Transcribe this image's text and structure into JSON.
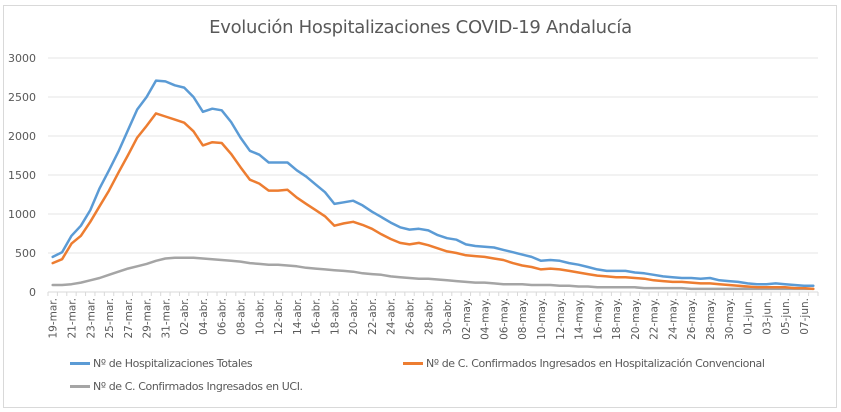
{
  "chart_data": {
    "type": "line",
    "title": "Evolución Hospitalizaciones COVID-19 Andalucía",
    "xlabel": "",
    "ylabel": "",
    "ylim": [
      0,
      3000
    ],
    "yticks": [
      0,
      500,
      1000,
      1500,
      2000,
      2500,
      3000
    ],
    "grid": true,
    "legend_position": "bottom",
    "x": [
      "19-mar.",
      "20-mar.",
      "21-mar.",
      "22-mar.",
      "23-mar.",
      "24-mar.",
      "25-mar.",
      "26-mar.",
      "27-mar.",
      "28-mar.",
      "29-mar.",
      "30-mar.",
      "31-mar.",
      "01-abr.",
      "02-abr.",
      "03-abr.",
      "04-abr.",
      "05-abr.",
      "06-abr.",
      "07-abr.",
      "08-abr.",
      "09-abr.",
      "10-abr.",
      "11-abr.",
      "12-abr.",
      "13-abr.",
      "14-abr.",
      "15-abr.",
      "16-abr.",
      "17-abr.",
      "18-abr.",
      "19-abr.",
      "20-abr.",
      "21-abr.",
      "22-abr.",
      "23-abr.",
      "24-abr.",
      "25-abr.",
      "26-abr.",
      "27-abr.",
      "28-abr.",
      "29-abr.",
      "30-abr.",
      "01-may.",
      "02-may.",
      "03-may.",
      "04-may.",
      "05-may.",
      "06-may.",
      "07-may.",
      "08-may.",
      "09-may.",
      "10-may.",
      "11-may.",
      "12-may.",
      "13-may.",
      "14-may.",
      "15-may.",
      "16-may.",
      "17-may.",
      "18-may.",
      "19-may.",
      "20-may.",
      "21-may.",
      "22-may.",
      "23-may.",
      "24-may.",
      "25-may.",
      "26-may.",
      "27-may.",
      "28-may.",
      "29-may.",
      "30-may.",
      "31-may.",
      "01-jun.",
      "02-jun.",
      "03-jun.",
      "04-jun.",
      "05-jun.",
      "06-jun.",
      "07-jun.",
      "08-jun."
    ],
    "xtick_labels": [
      "19-mar.",
      "21-mar.",
      "23-mar.",
      "25-mar.",
      "27-mar.",
      "29-mar.",
      "31-mar.",
      "02-abr.",
      "04-abr.",
      "06-abr.",
      "08-abr.",
      "10-abr.",
      "12-abr.",
      "14-abr.",
      "16-abr.",
      "18-abr.",
      "20-abr.",
      "22-abr.",
      "24-abr.",
      "26-abr.",
      "28-abr.",
      "30-abr.",
      "02-may.",
      "04-may.",
      "06-may.",
      "08-may.",
      "10-may.",
      "12-may.",
      "14-may.",
      "16-may.",
      "18-may.",
      "20-may.",
      "22-may.",
      "24-may.",
      "26-may.",
      "28-may.",
      "30-may.",
      "01-jun.",
      "03-jun.",
      "05-jun.",
      "07-jun."
    ],
    "series": [
      {
        "name": "Nº de Hospitalizaciones Totales",
        "color": "#5b9bd5",
        "values": [
          450,
          510,
          720,
          850,
          1050,
          1330,
          1560,
          1800,
          2070,
          2340,
          2500,
          2710,
          2700,
          2650,
          2620,
          2500,
          2310,
          2350,
          2330,
          2180,
          1980,
          1810,
          1760,
          1660,
          1660,
          1660,
          1560,
          1480,
          1380,
          1280,
          1130,
          1150,
          1170,
          1110,
          1030,
          960,
          890,
          830,
          800,
          810,
          790,
          730,
          690,
          670,
          610,
          590,
          580,
          570,
          540,
          510,
          480,
          450,
          400,
          410,
          400,
          370,
          350,
          320,
          290,
          270,
          270,
          270,
          250,
          240,
          220,
          200,
          190,
          180,
          180,
          170,
          180,
          150,
          140,
          130,
          110,
          100,
          100,
          110,
          100,
          90,
          80,
          80
        ]
      },
      {
        "name": "Nº de C. Confirmados Ingresados en Hospitalización Convencional",
        "color": "#ed7d31",
        "values": [
          370,
          420,
          620,
          720,
          900,
          1100,
          1300,
          1530,
          1750,
          1980,
          2130,
          2290,
          2250,
          2210,
          2170,
          2060,
          1880,
          1920,
          1910,
          1770,
          1600,
          1440,
          1390,
          1300,
          1300,
          1310,
          1210,
          1130,
          1050,
          970,
          850,
          880,
          900,
          860,
          810,
          740,
          680,
          630,
          610,
          630,
          600,
          560,
          520,
          500,
          470,
          460,
          450,
          430,
          410,
          370,
          340,
          320,
          290,
          300,
          290,
          270,
          250,
          230,
          210,
          200,
          190,
          190,
          180,
          170,
          150,
          140,
          130,
          130,
          120,
          110,
          110,
          100,
          90,
          80,
          70,
          60,
          60,
          60,
          60,
          50,
          50,
          40
        ]
      },
      {
        "name": "Nº de C. Confirmados Ingresados en UCI.",
        "color": "#a5a5a5",
        "values": [
          90,
          90,
          100,
          120,
          150,
          180,
          220,
          260,
          300,
          330,
          360,
          400,
          430,
          440,
          440,
          440,
          430,
          420,
          410,
          400,
          390,
          370,
          360,
          350,
          350,
          340,
          330,
          310,
          300,
          290,
          280,
          270,
          260,
          240,
          230,
          220,
          200,
          190,
          180,
          170,
          170,
          160,
          150,
          140,
          130,
          120,
          120,
          110,
          100,
          100,
          100,
          90,
          90,
          90,
          80,
          80,
          70,
          70,
          60,
          60,
          60,
          60,
          60,
          50,
          50,
          50,
          50,
          50,
          40,
          40,
          40,
          40,
          40,
          40,
          40,
          40,
          40,
          40,
          40,
          40,
          40,
          40
        ]
      }
    ]
  }
}
